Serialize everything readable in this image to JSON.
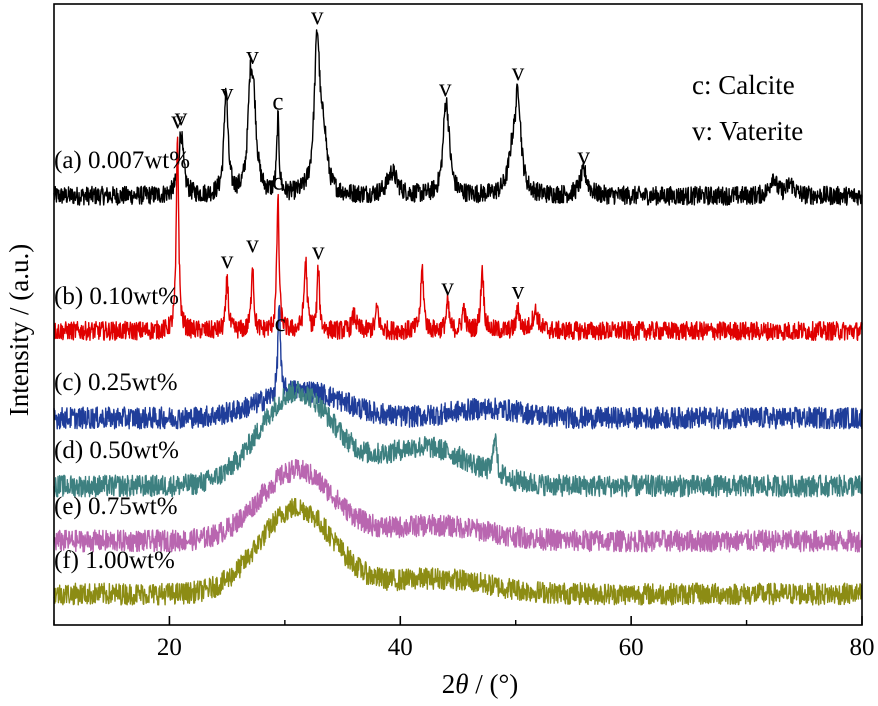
{
  "chart_data": {
    "type": "line",
    "title": "",
    "xlabel_parts": [
      "2",
      "θ",
      " / (°)"
    ],
    "ylabel": "Intensity / (a.u.)",
    "xlim": [
      10,
      80
    ],
    "xticks": [
      20,
      40,
      60,
      80
    ],
    "xtick_labels": [
      "20",
      "40",
      "60",
      "80"
    ],
    "grid": false,
    "legend_placement": "top-right",
    "legend": [
      {
        "key": "c",
        "text": "c: Calcite"
      },
      {
        "key": "v",
        "text": "v: Vaterite"
      }
    ],
    "series": [
      {
        "name": "(a) 0.007wt%",
        "color": "#000000",
        "baseline": 0.0,
        "noise": 0.12,
        "humps": [],
        "peaks": [
          [
            21.0,
            0.8,
            0.25
          ],
          [
            24.9,
            1.35,
            0.2
          ],
          [
            27.3,
            1.0,
            0.3
          ],
          [
            27.0,
            1.1,
            0.25
          ],
          [
            29.4,
            0.95,
            0.12
          ],
          [
            32.8,
            2.0,
            0.3
          ],
          [
            33.4,
            0.6,
            0.3
          ],
          [
            39.3,
            0.3,
            0.5
          ],
          [
            43.9,
            0.75,
            0.25
          ],
          [
            44.1,
            0.6,
            0.3
          ],
          [
            49.7,
            0.45,
            0.4
          ],
          [
            50.2,
            1.2,
            0.3
          ],
          [
            55.9,
            0.3,
            0.4
          ],
          [
            72.3,
            0.25,
            0.3
          ],
          [
            73.8,
            0.15,
            0.4
          ]
        ],
        "annotations": [
          {
            "x": 21.0,
            "label": "v"
          },
          {
            "x": 25.0,
            "label": "v"
          },
          {
            "x": 27.2,
            "label": "v"
          },
          {
            "x": 29.4,
            "label": "c"
          },
          {
            "x": 32.8,
            "label": "v"
          },
          {
            "x": 43.9,
            "label": "v"
          },
          {
            "x": 50.2,
            "label": "v"
          },
          {
            "x": 55.9,
            "label": "v"
          }
        ]
      },
      {
        "name": "(b) 0.10wt%",
        "color": "#e00000",
        "baseline": 0.0,
        "noise": 0.12,
        "humps": [],
        "peaks": [
          [
            20.7,
            2.5,
            0.12
          ],
          [
            25.0,
            0.7,
            0.12
          ],
          [
            27.2,
            0.9,
            0.12
          ],
          [
            29.4,
            1.7,
            0.12
          ],
          [
            31.8,
            0.9,
            0.15
          ],
          [
            32.9,
            0.8,
            0.12
          ],
          [
            36.0,
            0.2,
            0.2
          ],
          [
            38.0,
            0.3,
            0.15
          ],
          [
            41.9,
            0.8,
            0.15
          ],
          [
            44.1,
            0.35,
            0.15
          ],
          [
            45.5,
            0.3,
            0.15
          ],
          [
            47.1,
            0.8,
            0.15
          ],
          [
            50.2,
            0.3,
            0.15
          ],
          [
            51.7,
            0.25,
            0.3
          ]
        ],
        "annotations": [
          {
            "x": 20.7,
            "label": "v"
          },
          {
            "x": 25.0,
            "label": "v"
          },
          {
            "x": 27.2,
            "label": "v"
          },
          {
            "x": 29.4,
            "label": "c"
          },
          {
            "x": 32.9,
            "label": "v"
          },
          {
            "x": 44.1,
            "label": "v"
          },
          {
            "x": 50.2,
            "label": "v"
          }
        ]
      },
      {
        "name": "(c) 0.25wt%",
        "color": "#1f3d9a",
        "baseline": 0.0,
        "noise": 0.14,
        "humps": [
          [
            31.5,
            0.35,
            3.5
          ],
          [
            47.5,
            0.12,
            3.0
          ]
        ],
        "peaks": [
          [
            29.5,
            1.2,
            0.12
          ]
        ],
        "annotations": [
          {
            "x": 29.6,
            "label": "c"
          }
        ]
      },
      {
        "name": "(d) 0.50wt%",
        "color": "#3d8080",
        "baseline": 0.0,
        "noise": 0.14,
        "humps": [
          [
            31.0,
            1.2,
            3.2
          ],
          [
            42.0,
            0.5,
            4.0
          ]
        ],
        "peaks": [
          [
            48.2,
            0.55,
            0.15
          ]
        ],
        "annotations": []
      },
      {
        "name": "(e) 0.75wt%",
        "color": "#b966b0",
        "baseline": 0.0,
        "noise": 0.14,
        "humps": [
          [
            31.0,
            0.9,
            3.2
          ],
          [
            43.0,
            0.2,
            4.5
          ]
        ],
        "peaks": [],
        "annotations": []
      },
      {
        "name": "(f) 1.00wt%",
        "color": "#8c8c14",
        "baseline": 0.0,
        "noise": 0.14,
        "humps": [
          [
            31.0,
            1.1,
            3.2
          ],
          [
            43.0,
            0.2,
            4.5
          ]
        ],
        "peaks": [],
        "annotations": []
      }
    ]
  }
}
